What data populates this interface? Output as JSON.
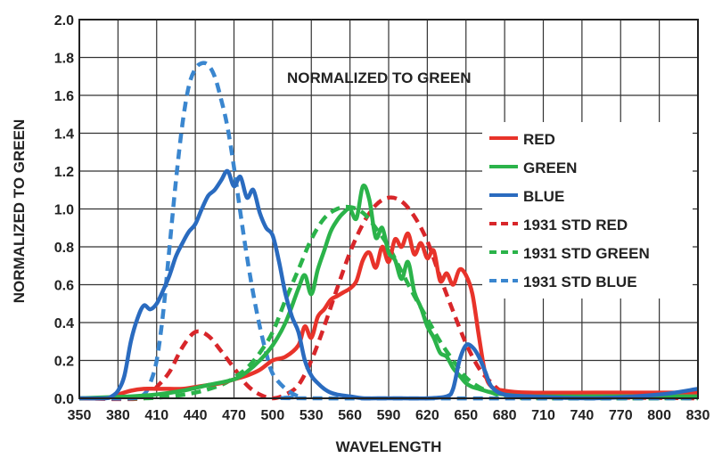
{
  "chart_data": {
    "type": "line",
    "title": "",
    "annotation": "NORMALIZED TO GREEN",
    "xlabel": "WAVELENGTH",
    "ylabel": "NORMALIZED TO GREEN",
    "xlim": [
      350,
      830
    ],
    "ylim": [
      0,
      2.0
    ],
    "xticks": [
      350,
      380,
      410,
      440,
      470,
      500,
      530,
      560,
      590,
      620,
      650,
      680,
      710,
      740,
      770,
      800,
      830
    ],
    "yticks": [
      "0.0",
      "0.2",
      "0.4",
      "0.6",
      "0.8",
      "1.0",
      "1.2",
      "1.4",
      "1.6",
      "1.8",
      "2.0"
    ],
    "grid": true,
    "legend_position": "right",
    "series": [
      {
        "name": "RED",
        "color": "#e8332a",
        "dash": false,
        "x": [
          350,
          370,
          380,
          390,
          400,
          410,
          420,
          430,
          440,
          450,
          460,
          470,
          480,
          490,
          500,
          510,
          520,
          525,
          530,
          535,
          540,
          545,
          550,
          555,
          560,
          565,
          570,
          575,
          580,
          585,
          590,
          595,
          600,
          605,
          610,
          615,
          620,
          625,
          630,
          635,
          640,
          645,
          650,
          655,
          660,
          665,
          670,
          680,
          700,
          750,
          800,
          830
        ],
        "y": [
          0.0,
          0.0,
          0.02,
          0.04,
          0.05,
          0.05,
          0.05,
          0.05,
          0.06,
          0.07,
          0.08,
          0.1,
          0.12,
          0.15,
          0.2,
          0.22,
          0.28,
          0.38,
          0.32,
          0.43,
          0.47,
          0.52,
          0.54,
          0.56,
          0.58,
          0.62,
          0.73,
          0.77,
          0.69,
          0.8,
          0.72,
          0.84,
          0.8,
          0.87,
          0.76,
          0.82,
          0.74,
          0.78,
          0.62,
          0.66,
          0.6,
          0.68,
          0.65,
          0.55,
          0.33,
          0.13,
          0.06,
          0.04,
          0.03,
          0.03,
          0.03,
          0.03
        ]
      },
      {
        "name": "GREEN",
        "color": "#2bb34a",
        "dash": false,
        "x": [
          350,
          390,
          410,
          430,
          450,
          470,
          480,
          490,
          500,
          510,
          520,
          525,
          530,
          535,
          540,
          545,
          550,
          555,
          560,
          565,
          570,
          575,
          580,
          585,
          590,
          595,
          600,
          605,
          610,
          615,
          620,
          625,
          630,
          635,
          640,
          645,
          650,
          655,
          660,
          670,
          680,
          700,
          750,
          800,
          830
        ],
        "y": [
          0.0,
          0.01,
          0.02,
          0.04,
          0.07,
          0.1,
          0.14,
          0.2,
          0.28,
          0.4,
          0.58,
          0.65,
          0.55,
          0.68,
          0.78,
          0.88,
          0.94,
          0.98,
          1.0,
          0.95,
          1.12,
          1.05,
          0.85,
          0.9,
          0.77,
          0.73,
          0.63,
          0.72,
          0.56,
          0.48,
          0.38,
          0.32,
          0.24,
          0.22,
          0.16,
          0.12,
          0.08,
          0.06,
          0.05,
          0.03,
          0.02,
          0.01,
          0.01,
          0.01,
          0.01
        ]
      },
      {
        "name": "BLUE",
        "color": "#2a6bbf",
        "dash": false,
        "x": [
          350,
          370,
          375,
          380,
          385,
          390,
          395,
          400,
          405,
          410,
          415,
          420,
          425,
          430,
          435,
          440,
          445,
          450,
          455,
          460,
          465,
          470,
          475,
          480,
          485,
          490,
          495,
          500,
          505,
          510,
          515,
          520,
          525,
          530,
          535,
          540,
          545,
          550,
          560,
          570,
          580,
          600,
          620,
          635,
          640,
          645,
          650,
          655,
          660,
          665,
          670,
          680,
          700,
          750,
          800,
          830
        ],
        "y": [
          0.0,
          0.0,
          0.01,
          0.04,
          0.12,
          0.3,
          0.42,
          0.49,
          0.47,
          0.5,
          0.57,
          0.65,
          0.75,
          0.82,
          0.88,
          0.92,
          1.0,
          1.07,
          1.1,
          1.15,
          1.2,
          1.12,
          1.17,
          1.06,
          1.1,
          0.98,
          0.9,
          0.86,
          0.72,
          0.55,
          0.43,
          0.35,
          0.2,
          0.12,
          0.08,
          0.05,
          0.03,
          0.02,
          0.01,
          0.0,
          0.0,
          0.0,
          0.0,
          0.01,
          0.05,
          0.2,
          0.28,
          0.27,
          0.22,
          0.14,
          0.06,
          0.02,
          0.01,
          0.0,
          0.02,
          0.05
        ]
      },
      {
        "name": "1931 STD RED",
        "color": "#d8262a",
        "dash": true,
        "x": [
          350,
          400,
          410,
          420,
          430,
          440,
          450,
          460,
          470,
          480,
          490,
          500,
          510,
          520,
          530,
          540,
          550,
          560,
          570,
          580,
          590,
          600,
          610,
          620,
          630,
          640,
          650,
          660,
          670,
          680,
          700,
          830
        ],
        "y": [
          0.0,
          0.0,
          0.06,
          0.14,
          0.27,
          0.35,
          0.33,
          0.25,
          0.16,
          0.07,
          0.02,
          0.0,
          0.02,
          0.07,
          0.2,
          0.38,
          0.58,
          0.77,
          0.92,
          1.02,
          1.06,
          1.04,
          0.96,
          0.83,
          0.64,
          0.46,
          0.29,
          0.16,
          0.08,
          0.03,
          0.01,
          0.0
        ]
      },
      {
        "name": "1931 STD GREEN",
        "color": "#2bb34a",
        "dash": true,
        "x": [
          350,
          400,
          420,
          440,
          460,
          470,
          480,
          490,
          500,
          510,
          520,
          530,
          540,
          550,
          560,
          570,
          580,
          590,
          600,
          610,
          620,
          630,
          640,
          650,
          660,
          670,
          680,
          700,
          830
        ],
        "y": [
          0.0,
          0.0,
          0.01,
          0.03,
          0.07,
          0.11,
          0.16,
          0.24,
          0.35,
          0.52,
          0.68,
          0.84,
          0.95,
          1.0,
          1.01,
          0.98,
          0.9,
          0.8,
          0.67,
          0.54,
          0.42,
          0.3,
          0.2,
          0.11,
          0.06,
          0.03,
          0.01,
          0.0,
          0.0
        ]
      },
      {
        "name": "1931 STD BLUE",
        "color": "#3a86cf",
        "dash": true,
        "x": [
          350,
          390,
          400,
          405,
          410,
          415,
          420,
          425,
          430,
          435,
          440,
          445,
          450,
          455,
          460,
          465,
          470,
          475,
          480,
          485,
          490,
          495,
          500,
          510,
          520,
          530,
          830
        ],
        "y": [
          0.0,
          0.0,
          0.02,
          0.08,
          0.2,
          0.45,
          0.8,
          1.15,
          1.45,
          1.65,
          1.74,
          1.77,
          1.76,
          1.7,
          1.58,
          1.43,
          1.22,
          0.98,
          0.75,
          0.55,
          0.38,
          0.24,
          0.13,
          0.05,
          0.01,
          0.0,
          0.0
        ]
      }
    ]
  }
}
